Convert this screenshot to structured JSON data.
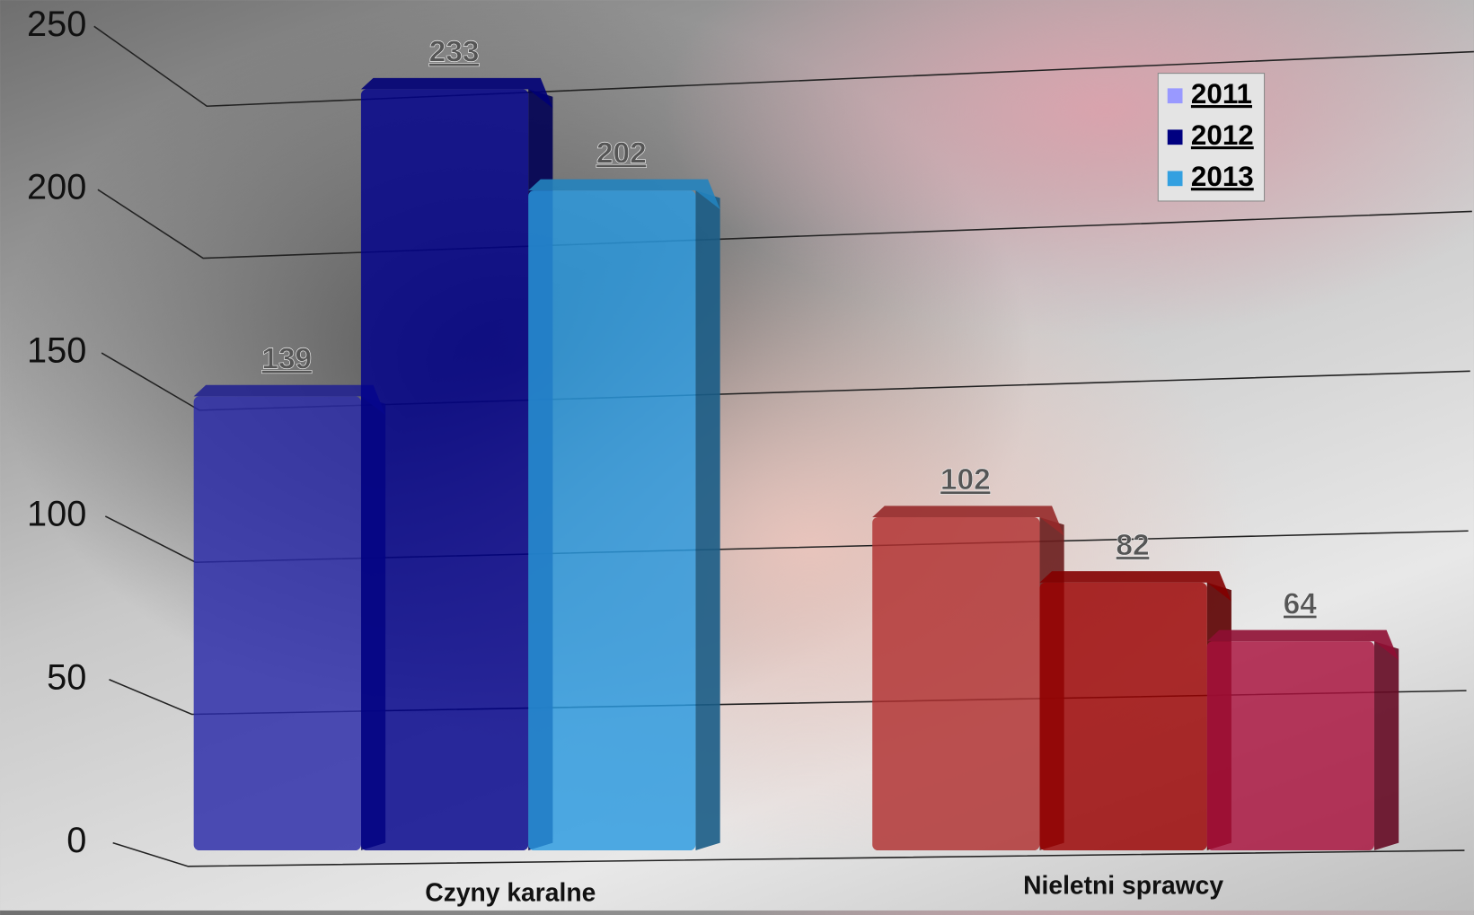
{
  "chart_data": {
    "type": "bar3d",
    "categories": [
      "Czyny karalne",
      "Nieletni sprawcy"
    ],
    "series": [
      {
        "name": "2011",
        "color": "#9999ff",
        "bar_colors": [
          "#2a2aa8",
          "#b03030"
        ],
        "values": [
          139,
          102
        ]
      },
      {
        "name": "2012",
        "color": "#000080",
        "bar_colors": [
          "#00008b",
          "#9a0000"
        ],
        "values": [
          233,
          82
        ]
      },
      {
        "name": "2013",
        "color": "#33a0e0",
        "bar_colors": [
          "#2a9ae0",
          "#a8103c"
        ],
        "values": [
          202,
          64
        ]
      }
    ],
    "ylim": [
      0,
      250
    ],
    "yticks": [
      0,
      50,
      100,
      150,
      200,
      250
    ],
    "grid": true,
    "legend": "top-right"
  }
}
